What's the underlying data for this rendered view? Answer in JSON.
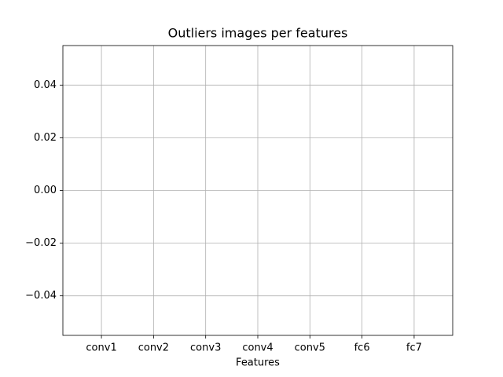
{
  "chart_data": {
    "type": "bar",
    "title": "Outliers images per features",
    "xlabel": "Features",
    "categories": [
      "conv1",
      "conv2",
      "conv3",
      "conv4",
      "conv5",
      "fc6",
      "fc7"
    ],
    "values": [
      0,
      0,
      0,
      0,
      0,
      0,
      0
    ],
    "color": "#1f77b4",
    "ylim": [
      -0.055,
      0.055
    ],
    "yticks": [
      {
        "value": -0.04,
        "label": "−0.04"
      },
      {
        "value": -0.02,
        "label": "−0.02"
      },
      {
        "value": 0,
        "label": "0.00"
      },
      0.02,
      0.04
    ],
    "grid": true
  }
}
